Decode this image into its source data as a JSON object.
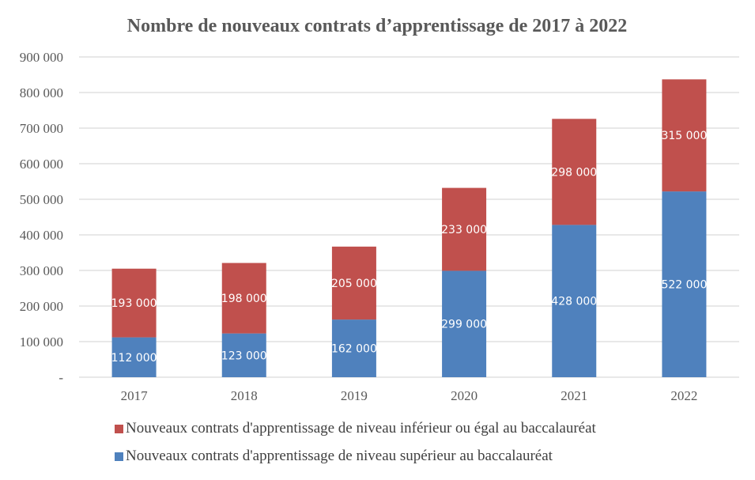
{
  "chart_data": {
    "type": "bar",
    "stacked": true,
    "title": "Nombre de nouveaux contrats d’apprentissage de 2017 à 2022",
    "xlabel": "",
    "ylabel": "",
    "categories": [
      "2017",
      "2018",
      "2019",
      "2020",
      "2021",
      "2022"
    ],
    "ylim": [
      0,
      900000
    ],
    "yticks": [
      0,
      100000,
      200000,
      300000,
      400000,
      500000,
      600000,
      700000,
      800000,
      900000
    ],
    "ytick_labels": [
      "-",
      "100 000",
      "200 000",
      "300 000",
      "400 000",
      "500 000",
      "600 000",
      "700 000",
      "800 000",
      "900 000"
    ],
    "grid": true,
    "legend_position": "bottom",
    "series": [
      {
        "name": "Nouveaux contrats d'apprentissage de niveau supérieur au baccalauréat",
        "color": "#4F81BD",
        "values": [
          112000,
          123000,
          162000,
          299000,
          428000,
          522000
        ],
        "labels": [
          "112 000",
          "123 000",
          "162 000",
          "299 000",
          "428 000",
          "522 000"
        ]
      },
      {
        "name": "Nouveaux contrats d'apprentissage de niveau inférieur ou égal au baccalauréat",
        "color": "#C0504D",
        "values": [
          193000,
          198000,
          205000,
          233000,
          298000,
          315000
        ],
        "labels": [
          "193 000",
          "198 000",
          "205 000",
          "233 000",
          "298 000",
          "315 000"
        ]
      }
    ]
  },
  "legend": [
    {
      "label": "Nouveaux contrats d'apprentissage de niveau inférieur ou égal au baccalauréat",
      "color": "#C0504D"
    },
    {
      "label": "Nouveaux contrats d'apprentissage de niveau supérieur au baccalauréat",
      "color": "#4F81BD"
    }
  ]
}
